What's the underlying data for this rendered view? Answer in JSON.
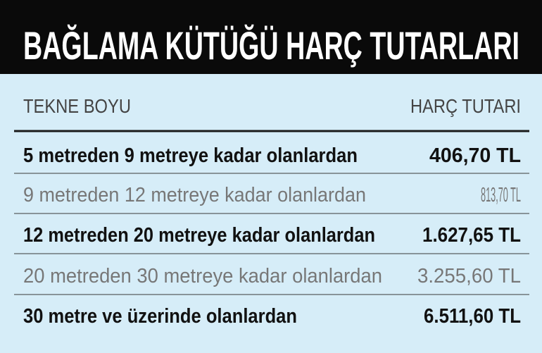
{
  "header": {
    "title": "BAĞLAMA KÜTÜĞÜ HARÇ TUTARLARI"
  },
  "table": {
    "columns": [
      "TEKNE BOYU",
      "HARÇ TUTARI"
    ],
    "rows": [
      [
        "5 metreden 9 metreye kadar olanlardan",
        "406,70 TL"
      ],
      [
        "9 metreden 12 metreye kadar olanlardan",
        "813,70 TL"
      ],
      [
        "12 metreden 20 metreye kadar olanlardan",
        "1.627,65 TL"
      ],
      [
        "20 metreden 30 metreye kadar olanlardan",
        "3.255,60 TL"
      ],
      [
        "30 metre ve üzerinde olanlardan",
        "6.511,60 TL"
      ]
    ]
  }
}
